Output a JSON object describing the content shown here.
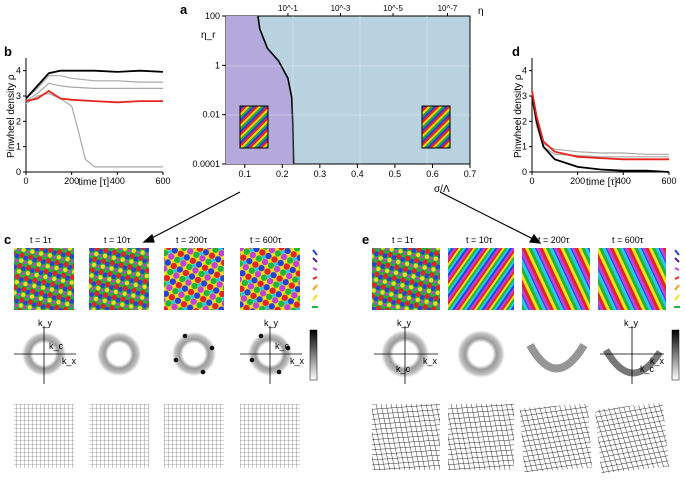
{
  "colors": {
    "purple_region": "#b4a9dc",
    "blue_region": "#b8d2e0",
    "line_black": "#000000",
    "line_red": "#e8231e",
    "line_gray": "#a8a8a8"
  },
  "panels": {
    "a": {
      "letter": "a",
      "ylabel": "η_r",
      "xlabel": "σ/Λ",
      "top_label": "η",
      "y_ticks": [
        "100",
        "1",
        "0.01",
        "0.0001"
      ],
      "x_ticks": [
        "0.1",
        "0.2",
        "0.3",
        "0.4",
        "0.5",
        "0.6",
        "0.7"
      ],
      "top_ticks": [
        "10^-1",
        "10^-3",
        "10^-5",
        "10^-7"
      ]
    },
    "b": {
      "letter": "b",
      "ylabel": "Pinwheel density ρ",
      "xlabel": "time [τ]",
      "y_ticks": [
        "0",
        "1",
        "2",
        "3",
        "4"
      ],
      "x_ticks": [
        "0",
        "200",
        "400",
        "600"
      ]
    },
    "d": {
      "letter": "d",
      "ylabel": "Pinwheel density ρ",
      "xlabel": "time [τ]",
      "y_ticks": [
        "0",
        "1",
        "2",
        "3",
        "4"
      ],
      "x_ticks": [
        "0",
        "200",
        "400",
        "600"
      ]
    },
    "c": {
      "letter": "c",
      "times": [
        "t = 1τ",
        "t = 10τ",
        "t = 200τ",
        "t = 600τ"
      ],
      "kx": "k_x",
      "ky": "k_y",
      "kc": "k_c"
    },
    "e": {
      "letter": "e",
      "times": [
        "t = 1τ",
        "t = 10τ",
        "t = 200τ",
        "t = 600τ"
      ],
      "kx": "k_x",
      "ky": "k_y",
      "kc": "k_c"
    }
  },
  "chart_data": [
    {
      "type": "area",
      "title": "a",
      "xlabel": "σ/Λ",
      "ylabel": "η_r",
      "xlim": [
        0.05,
        0.7
      ],
      "ylim_log10": [
        -4,
        2
      ],
      "boundary": {
        "x": [
          0.135,
          0.14,
          0.16,
          0.19,
          0.215,
          0.225,
          0.228,
          0.23
        ],
        "y": [
          100,
          30,
          5,
          1.5,
          0.3,
          0.05,
          0.005,
          0.0001
        ]
      }
    },
    {
      "type": "line",
      "title": "b",
      "xlabel": "time [τ]",
      "ylabel": "Pinwheel density ρ",
      "xlim": [
        0,
        600
      ],
      "ylim": [
        0,
        4.5
      ],
      "series": [
        {
          "name": "black",
          "x": [
            0,
            50,
            100,
            150,
            200,
            300,
            400,
            500,
            600
          ],
          "y": [
            2.9,
            3.4,
            3.9,
            4.0,
            4.0,
            4.0,
            3.95,
            4.0,
            3.95
          ]
        },
        {
          "name": "red",
          "x": [
            0,
            50,
            100,
            150,
            200,
            300,
            400,
            500,
            600
          ],
          "y": [
            2.8,
            2.9,
            3.2,
            2.9,
            2.85,
            2.8,
            2.75,
            2.8,
            2.8
          ]
        },
        {
          "name": "gray-1",
          "x": [
            0,
            50,
            100,
            150,
            200,
            300,
            400,
            500,
            600
          ],
          "y": [
            2.9,
            3.3,
            3.8,
            3.8,
            3.7,
            3.6,
            3.6,
            3.55,
            3.55
          ]
        },
        {
          "name": "gray-2",
          "x": [
            0,
            50,
            100,
            150,
            200,
            300,
            400,
            500,
            600
          ],
          "y": [
            2.8,
            3.1,
            3.5,
            3.4,
            3.35,
            3.3,
            3.3,
            3.3,
            3.3
          ]
        },
        {
          "name": "gray-3",
          "x": [
            0,
            50,
            100,
            150,
            200,
            230,
            260,
            300,
            400,
            500,
            600
          ],
          "y": [
            2.7,
            3.0,
            3.1,
            2.9,
            2.6,
            1.6,
            0.5,
            0.2,
            0.2,
            0.2,
            0.2
          ]
        }
      ]
    },
    {
      "type": "line",
      "title": "d",
      "xlabel": "time [τ]",
      "ylabel": "Pinwheel density ρ",
      "xlim": [
        0,
        600
      ],
      "ylim": [
        0,
        4.5
      ],
      "series": [
        {
          "name": "black",
          "x": [
            0,
            20,
            50,
            100,
            200,
            300,
            400,
            500,
            600
          ],
          "y": [
            3.0,
            2.0,
            1.0,
            0.5,
            0.2,
            0.1,
            0.05,
            0.05,
            0.0
          ]
        },
        {
          "name": "red",
          "x": [
            0,
            20,
            50,
            100,
            200,
            300,
            400,
            500,
            600
          ],
          "y": [
            3.2,
            2.2,
            1.2,
            0.8,
            0.6,
            0.55,
            0.5,
            0.5,
            0.5
          ]
        },
        {
          "name": "gray-1",
          "x": [
            0,
            20,
            50,
            100,
            200,
            300,
            400,
            500,
            600
          ],
          "y": [
            3.1,
            2.0,
            1.1,
            0.9,
            0.8,
            0.75,
            0.75,
            0.7,
            0.7
          ]
        },
        {
          "name": "gray-2",
          "x": [
            0,
            20,
            50,
            100,
            200,
            300,
            400,
            500,
            600
          ],
          "y": [
            3.0,
            1.8,
            1.0,
            0.7,
            0.65,
            0.6,
            0.6,
            0.6,
            0.6
          ]
        }
      ]
    }
  ]
}
